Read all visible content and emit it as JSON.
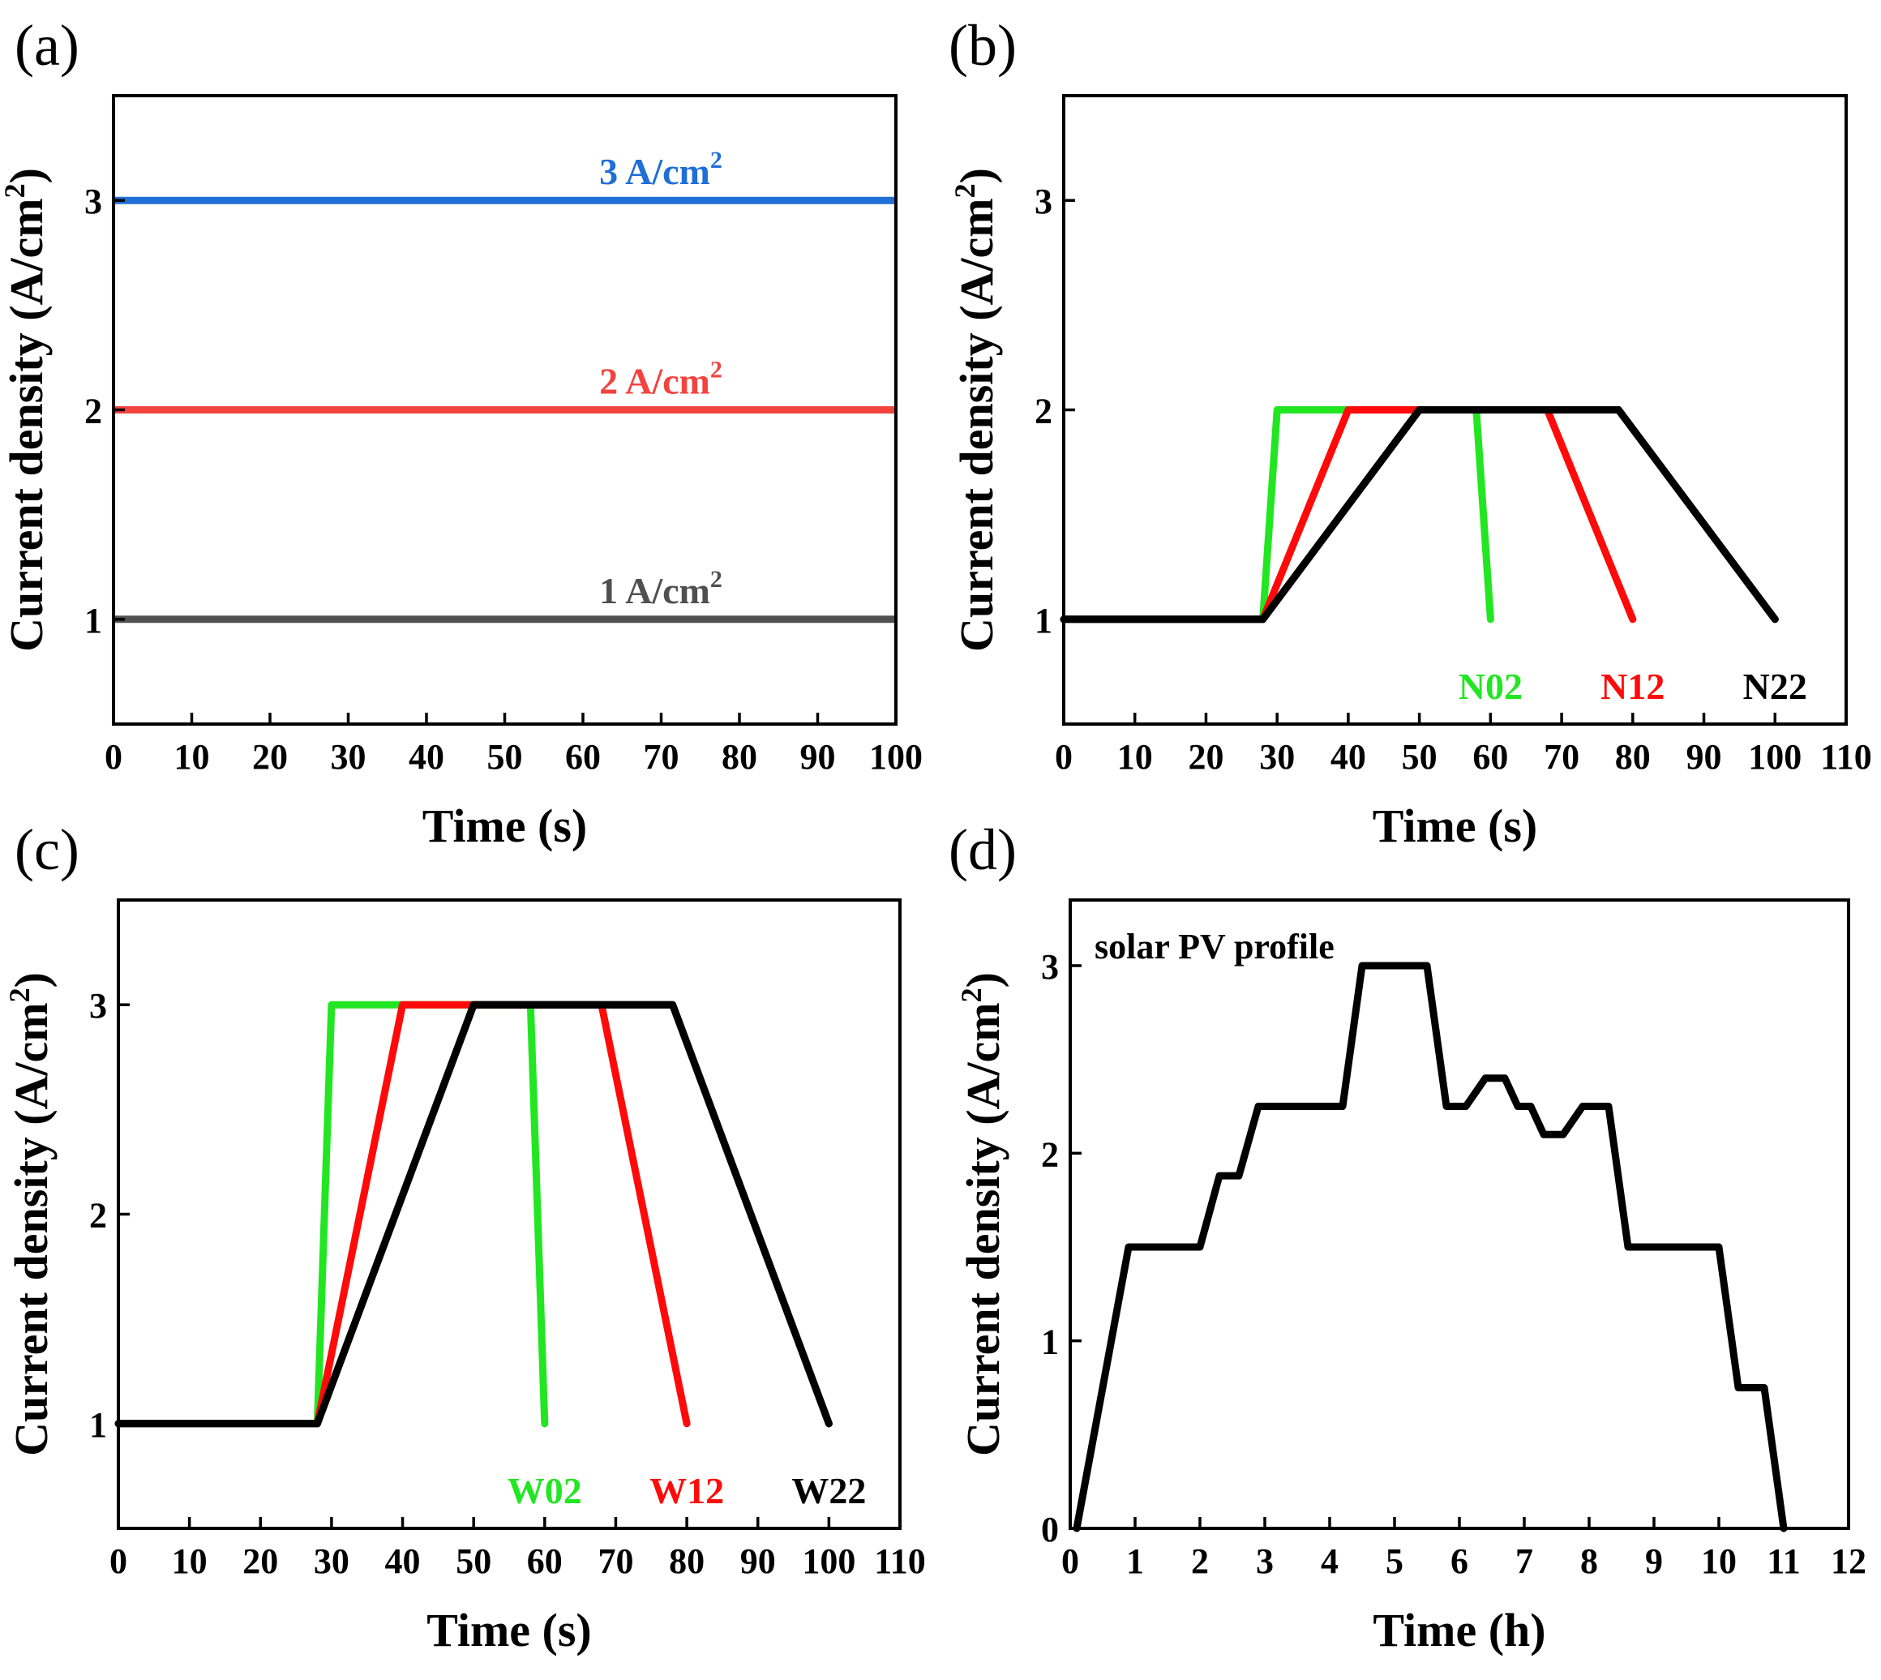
{
  "chart_data": [
    {
      "panel": "(a)",
      "type": "line",
      "xlabel": "Time (s)",
      "ylabel": "Current density (A/cm²)",
      "xlim": [
        0,
        100
      ],
      "ylim": [
        0.5,
        3.5
      ],
      "xticks": [
        0,
        10,
        20,
        30,
        40,
        50,
        60,
        70,
        80,
        90,
        100
      ],
      "yticks": [
        1,
        2,
        3
      ],
      "series": [
        {
          "name": "3 A/cm²",
          "color": "#1f6fd6",
          "points": [
            [
              0,
              3
            ],
            [
              100,
              3
            ]
          ]
        },
        {
          "name": "2 A/cm²",
          "color": "#f2433f",
          "points": [
            [
              0,
              2
            ],
            [
              100,
              2
            ]
          ]
        },
        {
          "name": "1 A/cm²",
          "color": "#505050",
          "points": [
            [
              0,
              1
            ],
            [
              100,
              1
            ]
          ]
        }
      ]
    },
    {
      "panel": "(b)",
      "type": "line",
      "xlabel": "Time (s)",
      "ylabel": "Current density (A/cm²)",
      "xlim": [
        0,
        110
      ],
      "ylim": [
        0.5,
        3.5
      ],
      "xticks": [
        0,
        10,
        20,
        30,
        40,
        50,
        60,
        70,
        80,
        90,
        100,
        110
      ],
      "yticks": [
        1,
        2,
        3
      ],
      "series": [
        {
          "name": "N02",
          "color": "#22e622",
          "points": [
            [
              28,
              1
            ],
            [
              30,
              2
            ],
            [
              58,
              2
            ],
            [
              60,
              1
            ]
          ]
        },
        {
          "name": "N12",
          "color": "#ff0a0a",
          "points": [
            [
              28,
              1
            ],
            [
              40,
              2
            ],
            [
              68,
              2
            ],
            [
              80,
              1
            ]
          ]
        },
        {
          "name": "N22",
          "color": "#000000",
          "points": [
            [
              0,
              1
            ],
            [
              28,
              1
            ],
            [
              50,
              2
            ],
            [
              78,
              2
            ],
            [
              100,
              1
            ]
          ]
        }
      ]
    },
    {
      "panel": "(c)",
      "type": "line",
      "xlabel": "Time (s)",
      "ylabel": "Current density (A/cm²)",
      "xlim": [
        0,
        110
      ],
      "ylim": [
        0.5,
        3.5
      ],
      "xticks": [
        0,
        10,
        20,
        30,
        40,
        50,
        60,
        70,
        80,
        90,
        100,
        110
      ],
      "yticks": [
        1,
        2,
        3
      ],
      "series": [
        {
          "name": "W02",
          "color": "#22e622",
          "points": [
            [
              28,
              1
            ],
            [
              30,
              3
            ],
            [
              58,
              3
            ],
            [
              60,
              1
            ]
          ]
        },
        {
          "name": "W12",
          "color": "#ff0a0a",
          "points": [
            [
              28,
              1
            ],
            [
              40,
              3
            ],
            [
              68,
              3
            ],
            [
              80,
              1
            ]
          ]
        },
        {
          "name": "W22",
          "color": "#000000",
          "points": [
            [
              0,
              1
            ],
            [
              28,
              1
            ],
            [
              50,
              3
            ],
            [
              78,
              3
            ],
            [
              100,
              1
            ]
          ]
        }
      ]
    },
    {
      "panel": "(d)",
      "type": "line",
      "annotation": "solar PV profile",
      "xlabel": "Time (h)",
      "ylabel": "Current density (A/cm²)",
      "xlim": [
        0,
        12
      ],
      "ylim": [
        0,
        3.35
      ],
      "xticks": [
        0,
        1,
        2,
        3,
        4,
        5,
        6,
        7,
        8,
        9,
        10,
        11,
        12
      ],
      "yticks": [
        0,
        1,
        2,
        3
      ],
      "series": [
        {
          "name": "solar PV profile",
          "color": "#000000",
          "points": [
            [
              0.1,
              0
            ],
            [
              0.9,
              1.5
            ],
            [
              2.0,
              1.5
            ],
            [
              2.3,
              1.88
            ],
            [
              2.6,
              1.88
            ],
            [
              2.9,
              2.25
            ],
            [
              4.2,
              2.25
            ],
            [
              4.5,
              3.0
            ],
            [
              5.5,
              3.0
            ],
            [
              5.8,
              2.25
            ],
            [
              6.1,
              2.25
            ],
            [
              6.4,
              2.4
            ],
            [
              6.7,
              2.4
            ],
            [
              6.9,
              2.25
            ],
            [
              7.1,
              2.25
            ],
            [
              7.3,
              2.1
            ],
            [
              7.6,
              2.1
            ],
            [
              7.9,
              2.25
            ],
            [
              8.3,
              2.25
            ],
            [
              8.6,
              1.5
            ],
            [
              10.0,
              1.5
            ],
            [
              10.3,
              0.75
            ],
            [
              10.7,
              0.75
            ],
            [
              11.0,
              0
            ]
          ]
        }
      ]
    }
  ]
}
